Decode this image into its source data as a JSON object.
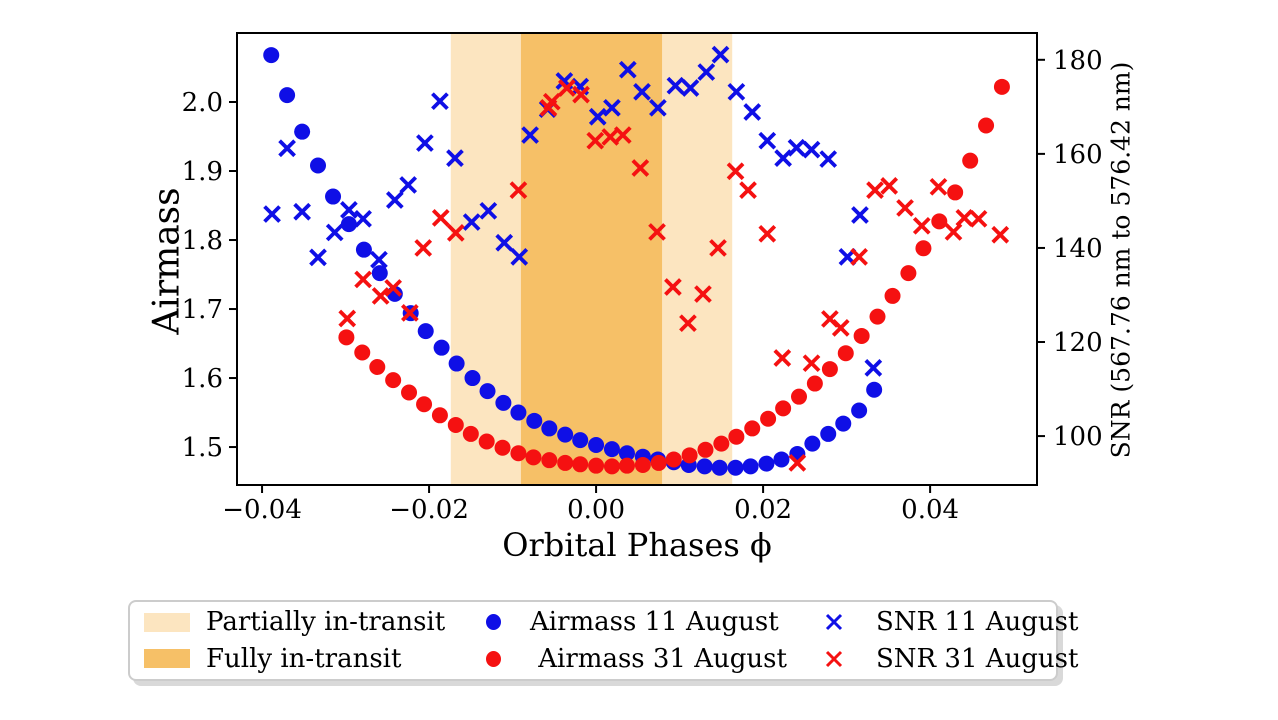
{
  "chart_data": {
    "type": "scatter",
    "xlabel": "Orbital Phases ϕ",
    "ylabel_left": "Airmass",
    "ylabel_right": "SNR (567.76 nm to 576.42 nm)",
    "xlim": [
      -0.043,
      0.0528
    ],
    "ylim_left": [
      1.445,
      2.1
    ],
    "ylim_right": [
      89.6,
      185.7
    ],
    "x_ticks": [
      -0.04,
      -0.02,
      0.0,
      0.02,
      0.04
    ],
    "x_tick_labels": [
      "−0.04",
      "−0.02",
      "0.00",
      "0.02",
      "0.04"
    ],
    "y_ticks_left": [
      1.5,
      1.6,
      1.7,
      1.8,
      1.9,
      2.0
    ],
    "y_tick_labels_left": [
      "1.5",
      "1.6",
      "1.7",
      "1.8",
      "1.9",
      "2.0"
    ],
    "y_ticks_right": [
      100,
      120,
      140,
      160,
      180
    ],
    "y_tick_labels_right": [
      "100",
      "120",
      "140",
      "160",
      "180"
    ],
    "grid": false,
    "legend_position": "bottom",
    "bands": {
      "partial": {
        "label": "Partially in-transit",
        "range": [
          -0.0174,
          0.0163
        ],
        "color": "#fce5c0"
      },
      "full": {
        "label": "Fully in-transit",
        "range": [
          -0.009,
          0.0079
        ],
        "color": "#f6c067"
      }
    },
    "series": [
      {
        "name": "Airmass 11 August",
        "marker": "circle",
        "axis": "left",
        "color": "#0f0fe6",
        "points": [
          [
            -0.0389,
            2.068
          ],
          [
            -0.037,
            2.01
          ],
          [
            -0.0352,
            1.957
          ],
          [
            -0.0333,
            1.908
          ],
          [
            -0.0315,
            1.863
          ],
          [
            -0.0296,
            1.823
          ],
          [
            -0.0278,
            1.786
          ],
          [
            -0.0259,
            1.752
          ],
          [
            -0.0241,
            1.722
          ],
          [
            -0.0222,
            1.694
          ],
          [
            -0.0204,
            1.668
          ],
          [
            -0.0185,
            1.644
          ],
          [
            -0.0167,
            1.621
          ],
          [
            -0.0148,
            1.6
          ],
          [
            -0.013,
            1.581
          ],
          [
            -0.0111,
            1.564
          ],
          [
            -0.0093,
            1.55
          ],
          [
            -0.0074,
            1.538
          ],
          [
            -0.0056,
            1.527
          ],
          [
            -0.0037,
            1.518
          ],
          [
            -0.0019,
            1.51
          ],
          [
            0.0,
            1.503
          ],
          [
            0.0019,
            1.497
          ],
          [
            0.0037,
            1.491
          ],
          [
            0.0056,
            1.486
          ],
          [
            0.0074,
            1.482
          ],
          [
            0.0093,
            1.478
          ],
          [
            0.0111,
            1.474
          ],
          [
            0.013,
            1.472
          ],
          [
            0.0148,
            1.47
          ],
          [
            0.0167,
            1.47
          ],
          [
            0.0185,
            1.472
          ],
          [
            0.0204,
            1.476
          ],
          [
            0.0222,
            1.482
          ],
          [
            0.0241,
            1.49
          ],
          [
            0.0259,
            1.505
          ],
          [
            0.0278,
            1.519
          ],
          [
            0.0296,
            1.534
          ],
          [
            0.0315,
            1.553
          ],
          [
            0.0333,
            1.583
          ]
        ]
      },
      {
        "name": " Airmass 31 August",
        "marker": "circle",
        "axis": "left",
        "color": "#f51111",
        "points": [
          [
            -0.0299,
            1.659
          ],
          [
            -0.028,
            1.637
          ],
          [
            -0.0262,
            1.616
          ],
          [
            -0.0243,
            1.597
          ],
          [
            -0.0224,
            1.579
          ],
          [
            -0.0206,
            1.562
          ],
          [
            -0.0187,
            1.546
          ],
          [
            -0.0168,
            1.532
          ],
          [
            -0.015,
            1.519
          ],
          [
            -0.0131,
            1.508
          ],
          [
            -0.0112,
            1.499
          ],
          [
            -0.0093,
            1.491
          ],
          [
            -0.0075,
            1.485
          ],
          [
            -0.0056,
            1.481
          ],
          [
            -0.0037,
            1.477
          ],
          [
            -0.0019,
            1.475
          ],
          [
            0.0,
            1.473
          ],
          [
            0.0019,
            1.472
          ],
          [
            0.0037,
            1.473
          ],
          [
            0.0056,
            1.474
          ],
          [
            0.0075,
            1.477
          ],
          [
            0.0093,
            1.482
          ],
          [
            0.0112,
            1.488
          ],
          [
            0.0131,
            1.496
          ],
          [
            0.015,
            1.505
          ],
          [
            0.0168,
            1.515
          ],
          [
            0.0187,
            1.527
          ],
          [
            0.0206,
            1.541
          ],
          [
            0.0224,
            1.556
          ],
          [
            0.0243,
            1.573
          ],
          [
            0.0262,
            1.592
          ],
          [
            0.028,
            1.613
          ],
          [
            0.0299,
            1.636
          ],
          [
            0.0318,
            1.661
          ],
          [
            0.0337,
            1.689
          ],
          [
            0.0355,
            1.719
          ],
          [
            0.0374,
            1.752
          ],
          [
            0.0392,
            1.788
          ],
          [
            0.0411,
            1.827
          ],
          [
            0.043,
            1.869
          ],
          [
            0.0448,
            1.915
          ],
          [
            0.0467,
            1.966
          ],
          [
            0.0486,
            2.022
          ]
        ]
      },
      {
        "name": "SNR 11 August",
        "marker": "x",
        "axis": "right",
        "color": "#0f0fe6",
        "points": [
          [
            -0.0388,
            147.2
          ],
          [
            -0.037,
            161.2
          ],
          [
            -0.0352,
            147.7
          ],
          [
            -0.0333,
            138.0
          ],
          [
            -0.0313,
            143.3
          ],
          [
            -0.0296,
            148.1
          ],
          [
            -0.0279,
            146.2
          ],
          [
            -0.026,
            137.5
          ],
          [
            -0.0241,
            150.2
          ],
          [
            -0.0225,
            153.4
          ],
          [
            -0.0205,
            162.3
          ],
          [
            -0.0187,
            171.2
          ],
          [
            -0.0169,
            159.1
          ],
          [
            -0.0149,
            145.5
          ],
          [
            -0.0129,
            147.9
          ],
          [
            -0.011,
            141.1
          ],
          [
            -0.0092,
            138.1
          ],
          [
            -0.0079,
            164.0
          ],
          [
            -0.0058,
            169.5
          ],
          [
            -0.0038,
            175.5
          ],
          [
            -0.0019,
            174.3
          ],
          [
            0.0002,
            167.9
          ],
          [
            0.0019,
            169.8
          ],
          [
            0.0038,
            177.9
          ],
          [
            0.0055,
            173.2
          ],
          [
            0.0074,
            169.8
          ],
          [
            0.0095,
            174.5
          ],
          [
            0.0113,
            174.0
          ],
          [
            0.0132,
            177.4
          ],
          [
            0.0149,
            181.1
          ],
          [
            0.0168,
            173.2
          ],
          [
            0.0187,
            168.9
          ],
          [
            0.0205,
            162.8
          ],
          [
            0.0224,
            159.1
          ],
          [
            0.024,
            161.3
          ],
          [
            0.0258,
            160.9
          ],
          [
            0.0278,
            158.9
          ],
          [
            0.0301,
            138.1
          ],
          [
            0.0316,
            147.0
          ],
          [
            0.0332,
            114.5
          ]
        ]
      },
      {
        "name": "SNR 31 August",
        "marker": "x",
        "axis": "right",
        "color": "#f51111",
        "points": [
          [
            -0.0298,
            125.0
          ],
          [
            -0.0279,
            133.3
          ],
          [
            -0.0258,
            129.8
          ],
          [
            -0.0243,
            131.5
          ],
          [
            -0.0223,
            126.2
          ],
          [
            -0.0207,
            140.0
          ],
          [
            -0.0186,
            146.4
          ],
          [
            -0.0168,
            143.2
          ],
          [
            -0.0093,
            152.3
          ],
          [
            -0.0057,
            169.8
          ],
          [
            -0.0053,
            171.1
          ],
          [
            -0.0035,
            174.0
          ],
          [
            -0.0018,
            172.6
          ],
          [
            -0.0001,
            162.8
          ],
          [
            0.0017,
            163.6
          ],
          [
            0.0032,
            164.0
          ],
          [
            0.0053,
            157.0
          ],
          [
            0.0073,
            143.4
          ],
          [
            0.0092,
            131.7
          ],
          [
            0.011,
            124.0
          ],
          [
            0.0128,
            130.2
          ],
          [
            0.0146,
            140.0
          ],
          [
            0.0167,
            156.3
          ],
          [
            0.0182,
            152.3
          ],
          [
            0.0205,
            143.0
          ],
          [
            0.0223,
            116.6
          ],
          [
            0.0241,
            94.3
          ],
          [
            0.0258,
            115.5
          ],
          [
            0.028,
            124.9
          ],
          [
            0.0293,
            123.0
          ],
          [
            0.0315,
            138.1
          ],
          [
            0.0334,
            152.3
          ],
          [
            0.0351,
            153.2
          ],
          [
            0.037,
            148.5
          ],
          [
            0.039,
            144.7
          ],
          [
            0.041,
            153.0
          ],
          [
            0.0428,
            143.4
          ],
          [
            0.0441,
            146.4
          ],
          [
            0.0458,
            146.2
          ],
          [
            0.0484,
            142.8
          ]
        ]
      }
    ]
  }
}
